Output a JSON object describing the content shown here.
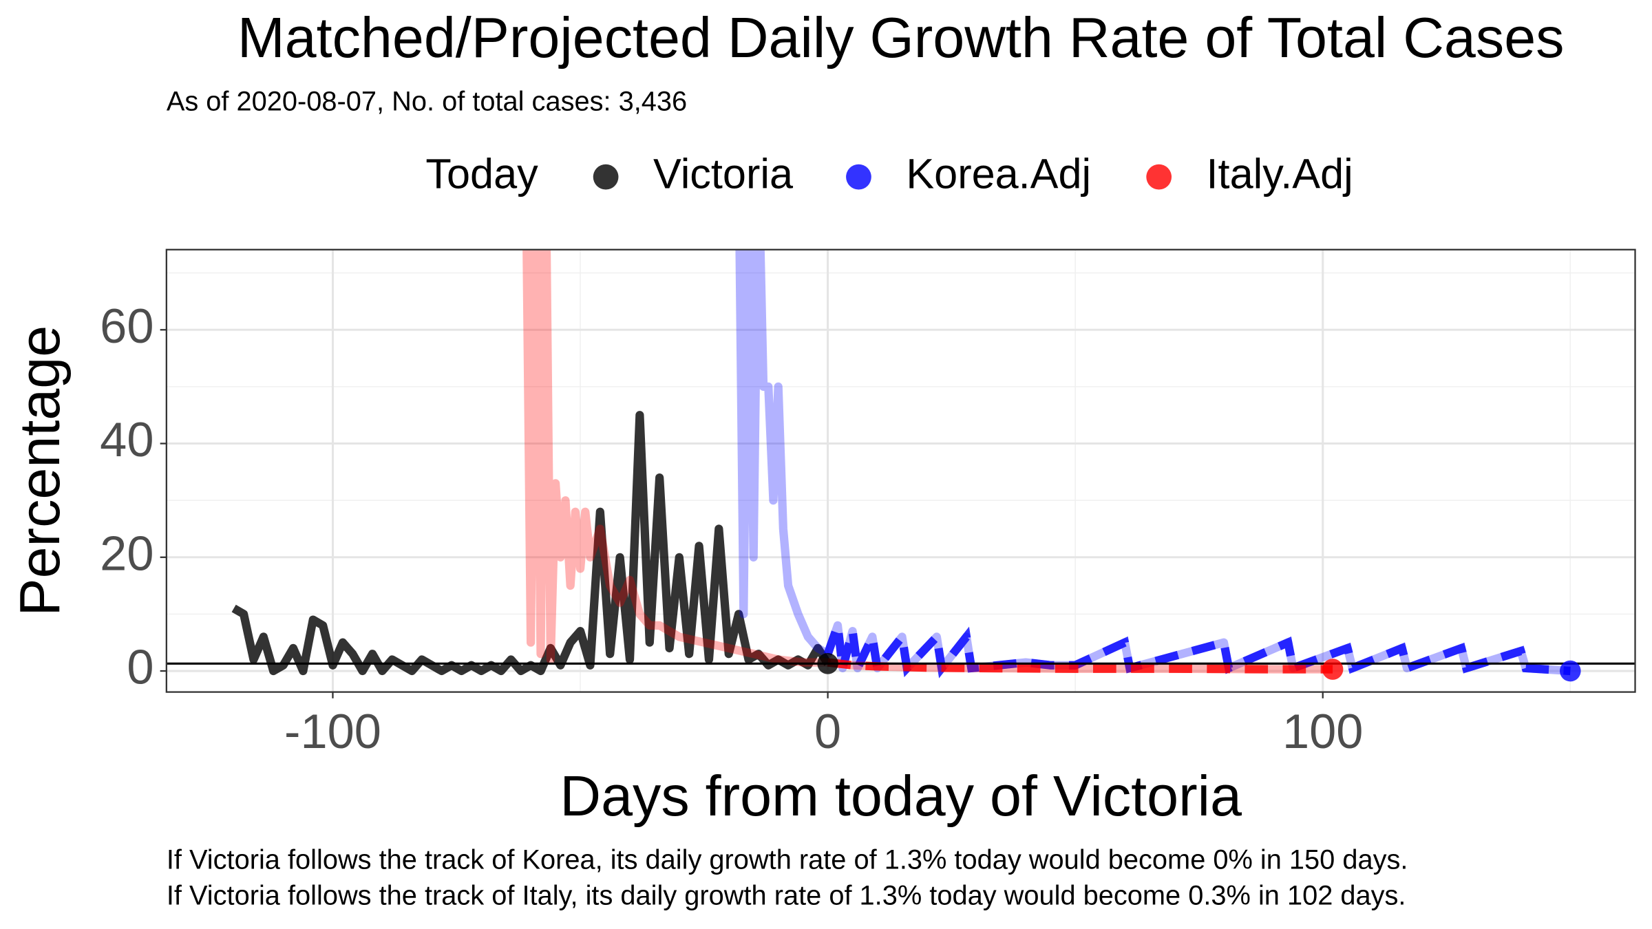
{
  "chart_data": {
    "type": "line",
    "title": "Matched/Projected Daily Growth Rate of Total Cases",
    "subtitle": "As of 2020-08-07, No. of total cases: 3,436",
    "x_label": "Days from today of Victoria",
    "y_label": "Percentage",
    "legend_title": "Today",
    "legend": "top",
    "grid": true,
    "notes": [
      "If Victoria follows the track of Korea, its daily growth rate of 1.3% today would become 0% in 150 days.",
      "If Victoria follows the track of Italy, its daily growth rate of 1.3% today would become 0.3% in 102 days."
    ],
    "xlim": [
      -133.6,
      163.1
    ],
    "ylim": [
      -3.7,
      74.1
    ],
    "xticks": [
      -100,
      0,
      100
    ],
    "yticks": [
      0,
      20,
      40,
      60
    ],
    "xminor": [
      -50,
      50,
      150
    ],
    "yminor": [
      10,
      30,
      50,
      70
    ],
    "hline": 1.3,
    "series": [
      {
        "name": "Victoria",
        "color": "#000000",
        "x": [
          -120,
          -118,
          -116,
          -114,
          -112,
          -110,
          -108,
          -106,
          -104,
          -102,
          -100,
          -98,
          -96,
          -94,
          -92,
          -90,
          -88,
          -86,
          -84,
          -82,
          -80,
          -78,
          -76,
          -74,
          -72,
          -70,
          -68,
          -66,
          -64,
          -62,
          -60,
          -58,
          -56,
          -54,
          -52,
          -50,
          -48,
          -46,
          -44,
          -42,
          -40,
          -38,
          -36,
          -34,
          -32,
          -30,
          -28,
          -26,
          -24,
          -22,
          -20,
          -18,
          -16,
          -14,
          -12,
          -10,
          -8,
          -6,
          -4,
          -2,
          0
        ],
        "values": [
          11,
          10,
          2,
          6,
          0,
          1,
          4,
          0,
          9,
          8,
          1,
          5,
          3,
          0,
          3,
          0,
          2,
          1,
          0,
          2,
          1,
          0,
          1,
          0,
          1,
          0,
          1,
          0,
          2,
          0,
          1,
          0,
          4,
          1,
          5,
          7,
          1,
          28,
          3,
          20,
          2,
          45,
          5,
          34,
          4,
          20,
          3,
          22,
          2,
          25,
          3,
          10,
          2,
          3,
          1,
          2,
          1,
          2,
          1,
          4,
          1.3
        ]
      },
      {
        "name": "Korea.Adj",
        "color": "#0000ff",
        "x": [
          -18,
          -17,
          -16,
          -15,
          -14,
          -13,
          -12,
          -11,
          -10,
          -9,
          -8,
          -6,
          -4,
          -2,
          0,
          2,
          3,
          5,
          6,
          9,
          10,
          15,
          16,
          22,
          23,
          28,
          29,
          40,
          45,
          50,
          60,
          61,
          80,
          81,
          93,
          94,
          105,
          106,
          116,
          117,
          128,
          129,
          140,
          141,
          150
        ],
        "values": [
          90,
          10,
          88,
          20,
          90,
          50,
          50,
          30,
          50,
          25,
          15,
          10,
          6,
          4,
          3,
          8,
          0.5,
          7,
          0.5,
          6,
          0.5,
          6,
          0.5,
          6,
          0.5,
          6,
          0.5,
          1.5,
          1,
          1,
          5,
          0.5,
          5,
          0.5,
          5,
          0.5,
          4,
          0.5,
          4,
          0.5,
          4,
          0.5,
          3.5,
          0.5,
          0
        ]
      },
      {
        "name": "Italy.Adj",
        "color": "#ff0000",
        "x": [
          -61,
          -60,
          -59,
          -58,
          -57,
          -56,
          -55,
          -54,
          -53,
          -52,
          -51,
          -50,
          -49,
          -48,
          -46,
          -44,
          -42,
          -40,
          -38,
          -36,
          -34,
          -30,
          -25,
          -20,
          -15,
          -10,
          -5,
          0,
          5,
          10,
          20,
          30,
          50,
          70,
          90,
          102
        ],
        "values": [
          90,
          5,
          90,
          3,
          90,
          2,
          33,
          20,
          30,
          15,
          28,
          18,
          28,
          20,
          25,
          15,
          12,
          16,
          10,
          8,
          8,
          6,
          5,
          4,
          3,
          2,
          1.5,
          1.5,
          1,
          0.8,
          0.6,
          0.5,
          0.4,
          0.4,
          0.3,
          0.3
        ]
      }
    ]
  }
}
